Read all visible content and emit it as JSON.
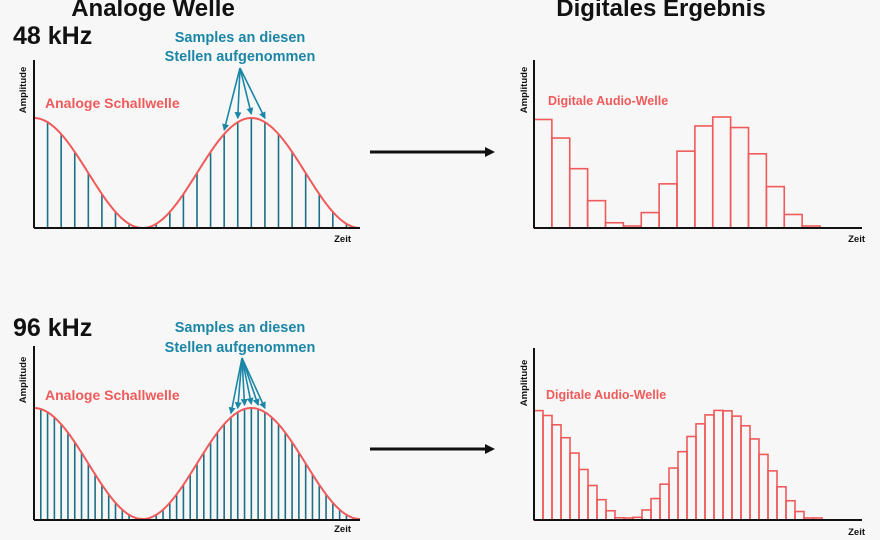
{
  "headers": {
    "left": "Analoge Welle",
    "right": "Digitales Ergebnis"
  },
  "axis": {
    "y_label": "Amplitude",
    "x_label": "Zeit"
  },
  "colors": {
    "wave": "#f05a5a",
    "sample_line": "#1b6f86",
    "annotation": "#1b86a6",
    "arrow": "#111111",
    "axis": "#111111"
  },
  "rows": [
    {
      "rate": "48 kHz",
      "annotation_line1": "Samples an diesen",
      "annotation_line2": "Stellen aufgenommen",
      "analog_label": "Analoge Schallwelle",
      "digital_label": "Digitale Audio-Welle",
      "samples_per_cycle": 16,
      "cycles": 1.5,
      "highlighted_samples": 4
    },
    {
      "rate": "96 kHz",
      "annotation_line1": "Samples an diesen",
      "annotation_line2": "Stellen aufgenommen",
      "analog_label": "Analoge Schallwelle",
      "digital_label": "Digitale Audio-Welle",
      "samples_per_cycle": 32,
      "cycles": 1.5,
      "highlighted_samples": 6
    }
  ]
}
